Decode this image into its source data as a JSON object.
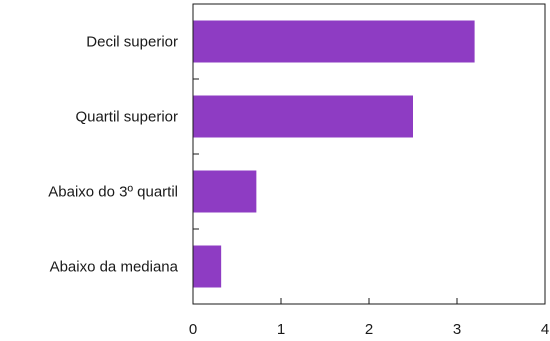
{
  "chart_data": {
    "type": "bar",
    "orientation": "horizontal",
    "categories": [
      "Decil superior",
      "Quartil superior",
      "Abaixo do 3º quartil",
      "Abaixo da mediana"
    ],
    "values": [
      3.2,
      2.5,
      0.72,
      0.32
    ],
    "xlim": [
      0,
      4
    ],
    "x_ticks": [
      "0",
      "1",
      "2",
      "3",
      "4"
    ],
    "title": "",
    "xlabel": "",
    "ylabel": "",
    "grid": false,
    "bar_color": "#8e3cc3",
    "axis_color": "#1a1a1a"
  }
}
